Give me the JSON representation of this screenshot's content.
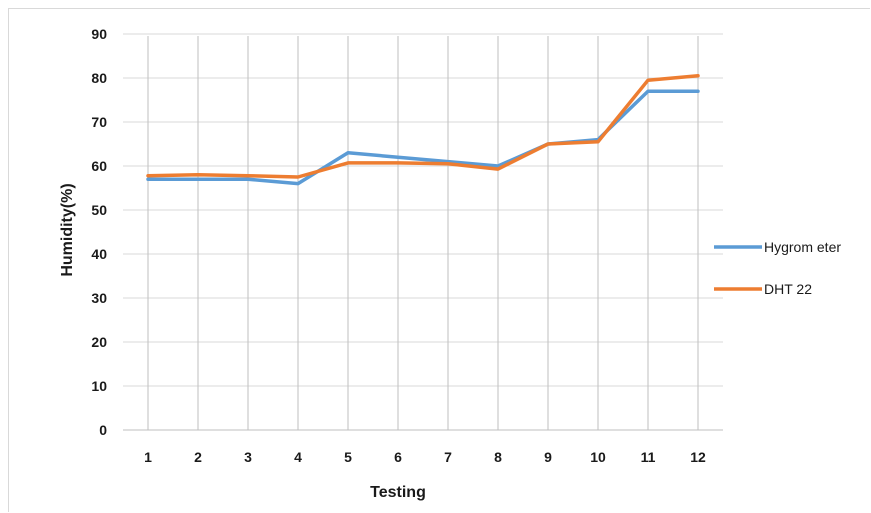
{
  "chart_data": {
    "type": "line",
    "title": "",
    "xlabel": "Testing",
    "ylabel": "Humidity(%)",
    "categories": [
      "1",
      "2",
      "3",
      "4",
      "5",
      "6",
      "7",
      "8",
      "9",
      "10",
      "11",
      "12"
    ],
    "y_ticks": [
      "0",
      "10",
      "20",
      "30",
      "40",
      "50",
      "60",
      "70",
      "80",
      "90"
    ],
    "ylim": [
      0,
      90
    ],
    "grid": "horizontal and vertical gridlines",
    "legend_position": "right",
    "series": [
      {
        "name": "Hygrom eter",
        "color": "#5b9bd5",
        "values": [
          57,
          57,
          57,
          56,
          63,
          62,
          61,
          60,
          65,
          66,
          77,
          77
        ]
      },
      {
        "name": "DHT 22",
        "color": "#ed7d31",
        "values": [
          57.8,
          58,
          57.8,
          57.5,
          60.7,
          60.7,
          60.5,
          59.3,
          65,
          65.5,
          79.5,
          80.5
        ]
      }
    ]
  }
}
